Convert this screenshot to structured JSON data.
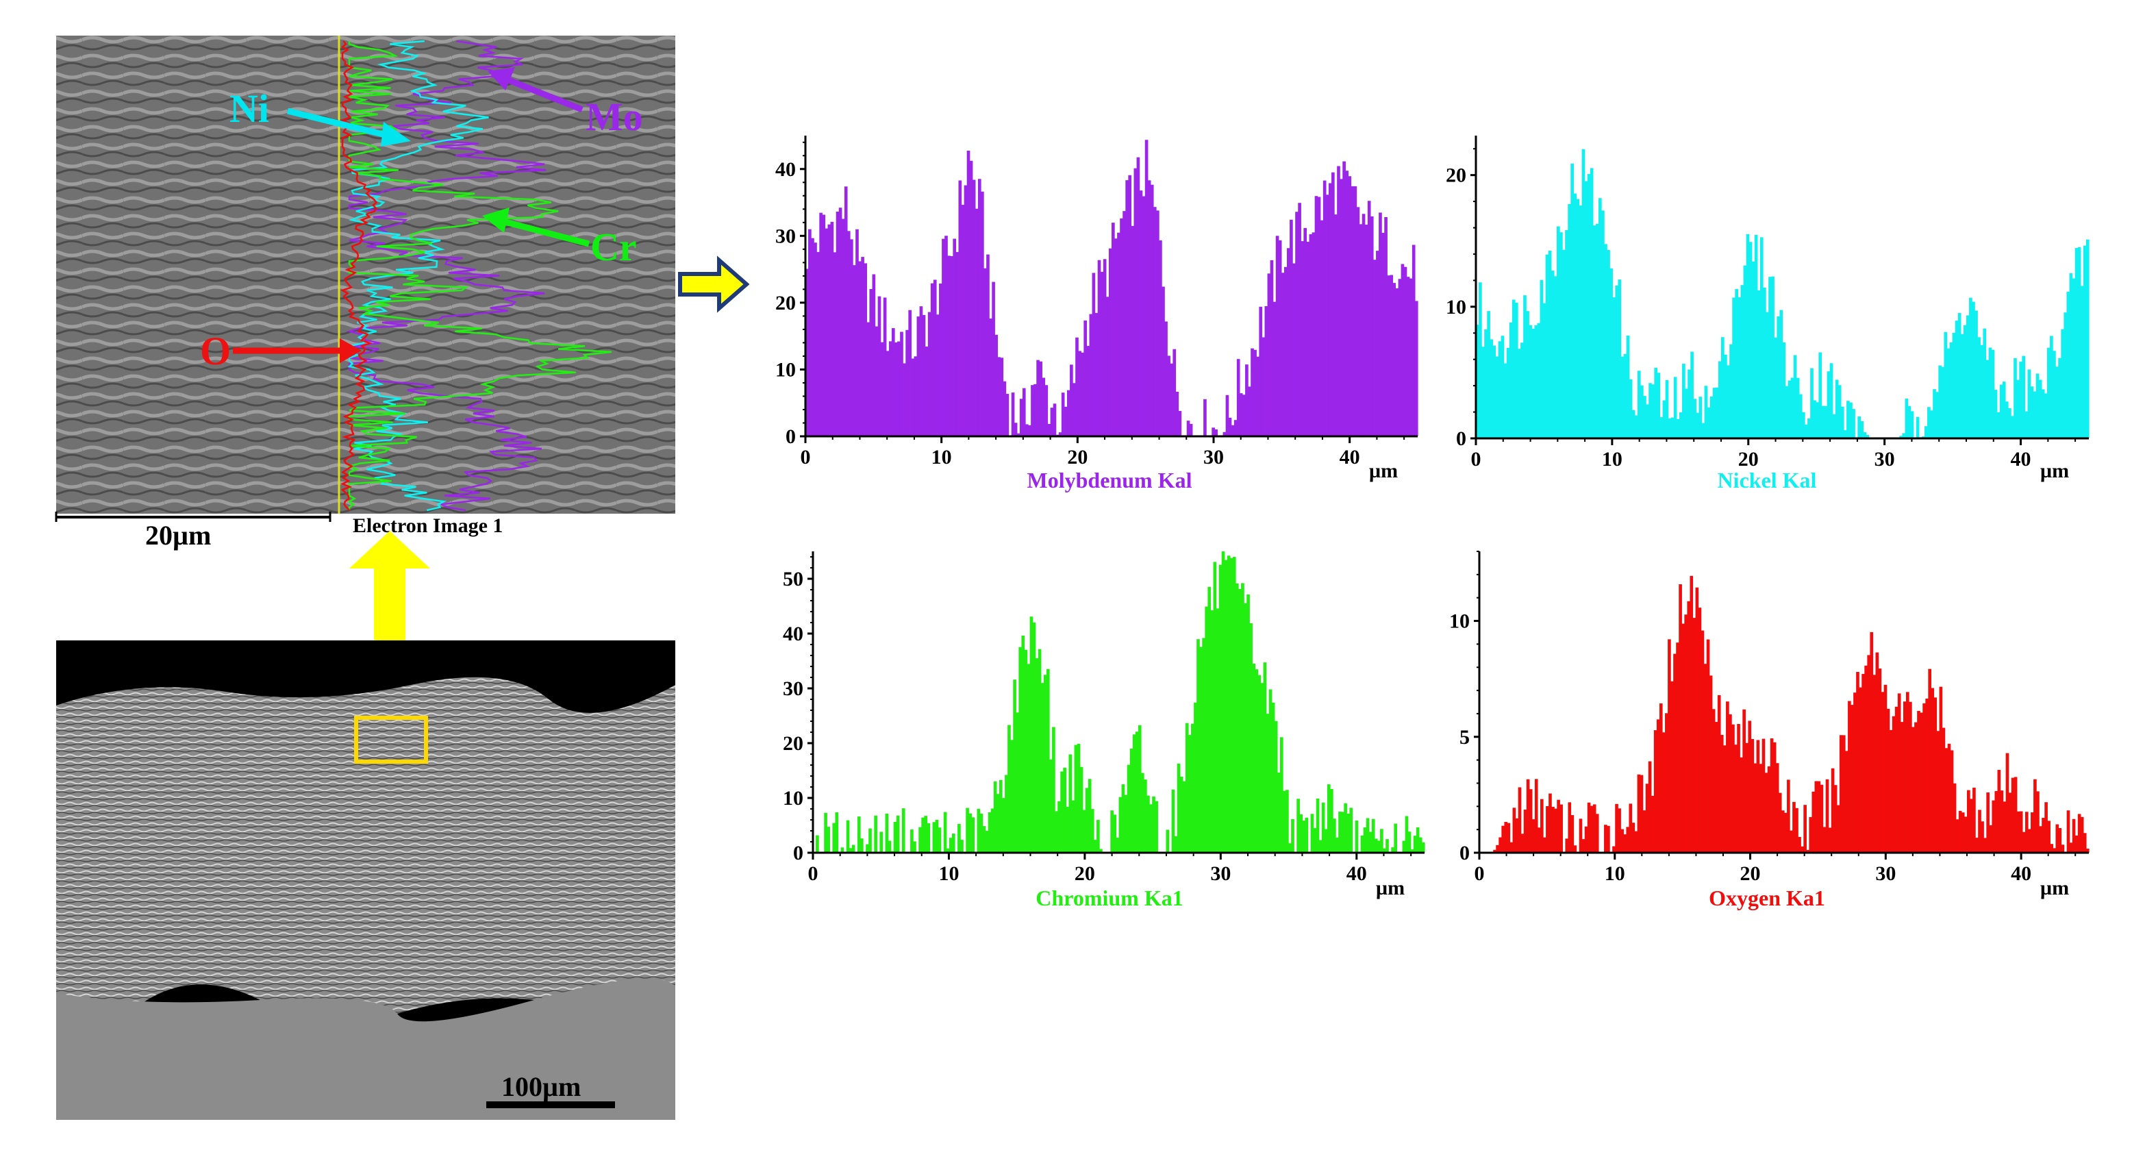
{
  "sem_top": {
    "caption": "Electron Image 1",
    "scale_bar": "20µm",
    "element_labels": [
      {
        "text": "Ni",
        "color": "#00e5ee"
      },
      {
        "text": "Mo",
        "color": "#9a28e8"
      },
      {
        "text": "Cr",
        "color": "#11ee11"
      },
      {
        "text": "O",
        "color": "#ee1111"
      }
    ]
  },
  "sem_bottom": {
    "scale_bar": "100µm"
  },
  "arrow_colors": {
    "up": "#ffff00",
    "right_fill": "#ffff00",
    "right_stroke": "#1f3b7a"
  },
  "chart_data": [
    {
      "type": "bar",
      "title": "Molybdenum Kal",
      "color": "#9b25e9",
      "xlabel": "µm",
      "xlim": [
        0,
        45
      ],
      "ylim": [
        0,
        45
      ],
      "xticks": [
        0,
        10,
        20,
        30,
        40
      ],
      "yticks": [
        0,
        10,
        20,
        30,
        40
      ],
      "x_profile": [
        0,
        1,
        2,
        3,
        4,
        5,
        6,
        7,
        8,
        9,
        10,
        11,
        12,
        13,
        14,
        15,
        16,
        17,
        18,
        19,
        20,
        21,
        22,
        23,
        24,
        25,
        26,
        27,
        28,
        29,
        30,
        31,
        32,
        33,
        34,
        35,
        36,
        37,
        38,
        39,
        40,
        41,
        42,
        43,
        44,
        45
      ],
      "y_profile": [
        28,
        30,
        32,
        34,
        24,
        20,
        16,
        15,
        14,
        18,
        24,
        30,
        42,
        32,
        15,
        5,
        2,
        10,
        5,
        2,
        12,
        20,
        24,
        30,
        36,
        40,
        30,
        10,
        2,
        1,
        1,
        2,
        8,
        14,
        20,
        28,
        30,
        32,
        35,
        38,
        36,
        32,
        30,
        28,
        25,
        24
      ]
    },
    {
      "type": "bar",
      "title": "Nickel Kal",
      "color": "#11f0f0",
      "xlabel": "µm",
      "xlim": [
        0,
        45
      ],
      "ylim": [
        0,
        23
      ],
      "xticks": [
        0,
        10,
        20,
        30,
        40
      ],
      "yticks": [
        0,
        10,
        20
      ],
      "x_profile": [
        0,
        1,
        2,
        3,
        4,
        5,
        6,
        7,
        8,
        9,
        10,
        11,
        12,
        13,
        14,
        15,
        16,
        17,
        18,
        19,
        20,
        21,
        22,
        23,
        24,
        25,
        26,
        27,
        28,
        29,
        30,
        31,
        32,
        33,
        34,
        35,
        36,
        37,
        38,
        39,
        40,
        41,
        42,
        43,
        44,
        45
      ],
      "y_profile": [
        10,
        8,
        8,
        9,
        10,
        12,
        15,
        19,
        20,
        17,
        14,
        6,
        3,
        4,
        2,
        3,
        5,
        2,
        5,
        11,
        14,
        13,
        10,
        5,
        3,
        5,
        4,
        2,
        1,
        0,
        0,
        0,
        1,
        3,
        5,
        7,
        11,
        8,
        4,
        3,
        5,
        3,
        5,
        9,
        12,
        14
      ]
    },
    {
      "type": "bar",
      "title": "Chromium Ka1",
      "color": "#22ef11",
      "xlabel": "µm",
      "xlim": [
        0,
        45
      ],
      "ylim": [
        0,
        55
      ],
      "xticks": [
        0,
        10,
        20,
        30,
        40
      ],
      "yticks": [
        0,
        10,
        20,
        30,
        40,
        50
      ],
      "x_profile": [
        0,
        1,
        2,
        3,
        4,
        5,
        6,
        7,
        8,
        9,
        10,
        11,
        12,
        13,
        14,
        15,
        16,
        17,
        18,
        19,
        20,
        21,
        22,
        23,
        24,
        25,
        26,
        27,
        28,
        29,
        30,
        31,
        32,
        33,
        34,
        35,
        36,
        37,
        38,
        39,
        40,
        41,
        42,
        43,
        44,
        45
      ],
      "y_profile": [
        1,
        2,
        2,
        2,
        2,
        2,
        3,
        2,
        2,
        2,
        2,
        3,
        3,
        5,
        15,
        30,
        42,
        35,
        10,
        16,
        12,
        2,
        2,
        12,
        20,
        8,
        2,
        12,
        30,
        45,
        50,
        48,
        42,
        32,
        24,
        8,
        2,
        6,
        10,
        4,
        2,
        1,
        1,
        1,
        1,
        1
      ]
    },
    {
      "type": "bar",
      "title": "Oxygen Ka1",
      "color": "#f20d0d",
      "xlabel": "µm",
      "xlim": [
        0,
        45
      ],
      "ylim": [
        0,
        13
      ],
      "xticks": [
        0,
        10,
        20,
        30,
        40
      ],
      "yticks": [
        0,
        5,
        10
      ],
      "x_profile": [
        0,
        1,
        2,
        3,
        4,
        5,
        6,
        7,
        8,
        9,
        10,
        11,
        12,
        13,
        14,
        15,
        16,
        17,
        18,
        19,
        20,
        21,
        22,
        23,
        24,
        25,
        26,
        27,
        28,
        29,
        30,
        31,
        32,
        33,
        34,
        35,
        36,
        37,
        38,
        39,
        40,
        41,
        42,
        43,
        44,
        45
      ],
      "y_profile": [
        0,
        0,
        1,
        2,
        2,
        2,
        1,
        1,
        1,
        1,
        1,
        2,
        2,
        4,
        8,
        11,
        11,
        8,
        6,
        5,
        5,
        5,
        3,
        2,
        1,
        2,
        2,
        5,
        8,
        9,
        7,
        6,
        6,
        7,
        6,
        3,
        2,
        2,
        2,
        3,
        2,
        2,
        1,
        1,
        1,
        1
      ]
    }
  ]
}
